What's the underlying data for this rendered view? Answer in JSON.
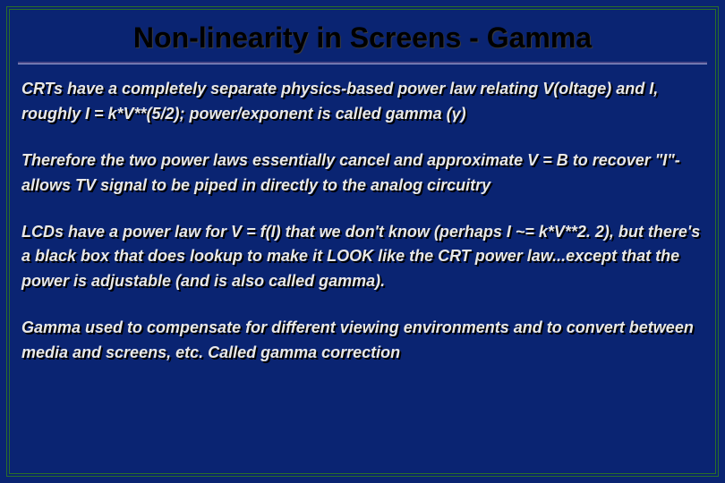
{
  "slide": {
    "title": "Non-linearity in Screens - Gamma",
    "paragraphs": [
      "CRTs have a completely separate physics-based power law relating V(oltage) and I, roughly   I = k*V**(5/2); power/exponent is called gamma (γ)",
      "Therefore the two power laws essentially cancel and approximate V = B to recover \"I\"- allows TV signal to be piped in directly to the analog circuitry",
      "LCDs have a power law for V = f(I) that we don't know (perhaps I ~= k*V**2. 2), but there's a black box that does lookup to make it LOOK like the CRT power law...except that the power is adjustable (and is also called gamma).",
      "Gamma used to compensate for different viewing environments and to convert between media and screens, etc. Called gamma correction"
    ]
  },
  "style": {
    "background_color": "#0a2472",
    "frame_border_color": "#2a6e2a",
    "title_color": "#000000",
    "title_fontsize": 32,
    "underline_top_color": "#4a4a8a",
    "underline_bottom_color": "#9aa0d0",
    "body_text_color": "#e8e8e8",
    "body_fontsize": 18,
    "body_font_weight": "bold",
    "body_font_style": "italic",
    "text_shadow_color": "#000000"
  }
}
